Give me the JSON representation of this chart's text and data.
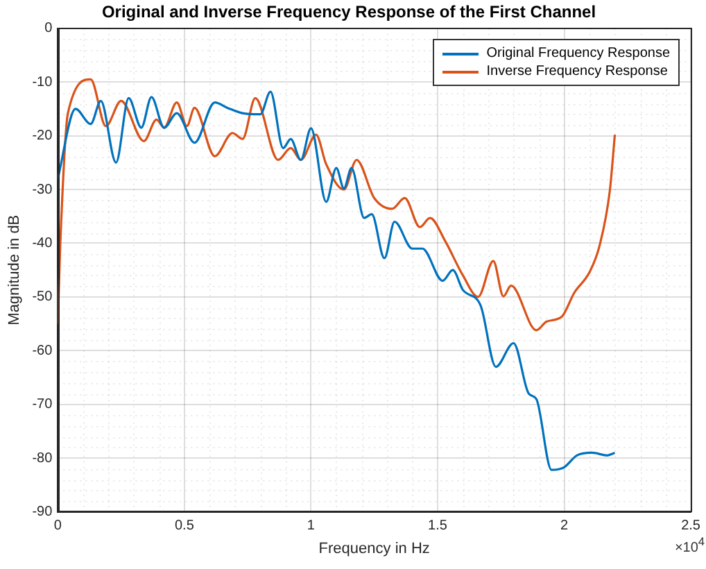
{
  "chart_data": {
    "type": "line",
    "title": "Original and Inverse Frequency Response of the First Channel",
    "xlabel": "Frequency in Hz",
    "ylabel": "Magnitude in dB",
    "annotations": [
      "×10$^{4}$"
    ],
    "xlim": [
      0,
      2.5
    ],
    "xticks": [
      0,
      0.5,
      1,
      1.5,
      2,
      2.5
    ],
    "ylim": [
      -90,
      0
    ],
    "yticks": [
      -90,
      -80,
      -70,
      -60,
      -50,
      -40,
      -30,
      -20,
      -10,
      0
    ],
    "grid": true,
    "legend": "top right",
    "marker": "none",
    "line_style": "solid",
    "series": [
      {
        "name": "Original Frequency Response",
        "color": "#0072bd",
        "x": [
          0,
          0.07,
          0.13,
          0.17,
          0.23,
          0.28,
          0.33,
          0.37,
          0.42,
          0.47,
          0.54,
          0.62,
          0.67,
          0.73,
          0.8,
          0.84,
          0.89,
          0.92,
          0.96,
          1.0,
          1.06,
          1.1,
          1.13,
          1.16,
          1.21,
          1.24,
          1.29,
          1.33,
          1.4,
          1.44,
          1.52,
          1.56,
          1.6,
          1.67,
          1.73,
          1.8,
          1.86,
          1.89,
          1.95,
          2.0,
          2.05,
          2.11,
          2.17,
          2.2
        ],
        "values": [
          -28,
          -15,
          -17.8,
          -13.5,
          -25,
          -13,
          -18.5,
          -12.8,
          -18.5,
          -15.8,
          -21.3,
          -13.8,
          -14.8,
          -15.8,
          -16,
          -11.8,
          -22.3,
          -20.6,
          -24.5,
          -18.6,
          -32.3,
          -26,
          -29.8,
          -26,
          -35.3,
          -34.6,
          -42.8,
          -36,
          -41,
          -41,
          -47,
          -45,
          -48.7,
          -51.6,
          -63,
          -58.6,
          -68,
          -69,
          -82.2,
          -81.7,
          -79.5,
          -79,
          -79.5,
          -79
        ]
      },
      {
        "name": "Inverse Frequency Response",
        "color": "#d95319",
        "x": [
          0,
          0.01,
          0.04,
          0.13,
          0.19,
          0.25,
          0.34,
          0.39,
          0.42,
          0.47,
          0.51,
          0.54,
          0.62,
          0.69,
          0.73,
          0.78,
          0.87,
          0.92,
          0.96,
          1.02,
          1.06,
          1.13,
          1.18,
          1.25,
          1.32,
          1.37,
          1.43,
          1.47,
          1.53,
          1.6,
          1.66,
          1.72,
          1.76,
          1.79,
          1.89,
          1.93,
          1.99,
          2.04,
          2.1,
          2.14,
          2.18,
          2.2
        ],
        "values": [
          -55,
          -40,
          -15.8,
          -9.5,
          -18.2,
          -13.5,
          -21,
          -17,
          -18.5,
          -13.8,
          -18.2,
          -14.8,
          -23.8,
          -19.5,
          -20.6,
          -13,
          -24.5,
          -22.3,
          -24.5,
          -19.8,
          -25.3,
          -30,
          -24.5,
          -31.6,
          -33.6,
          -31.6,
          -37,
          -35.3,
          -39.6,
          -46,
          -50,
          -43.3,
          -49.9,
          -47.9,
          -56.2,
          -54.6,
          -53.7,
          -49.2,
          -45.4,
          -40.4,
          -30.3,
          -19.8
        ]
      }
    ]
  }
}
